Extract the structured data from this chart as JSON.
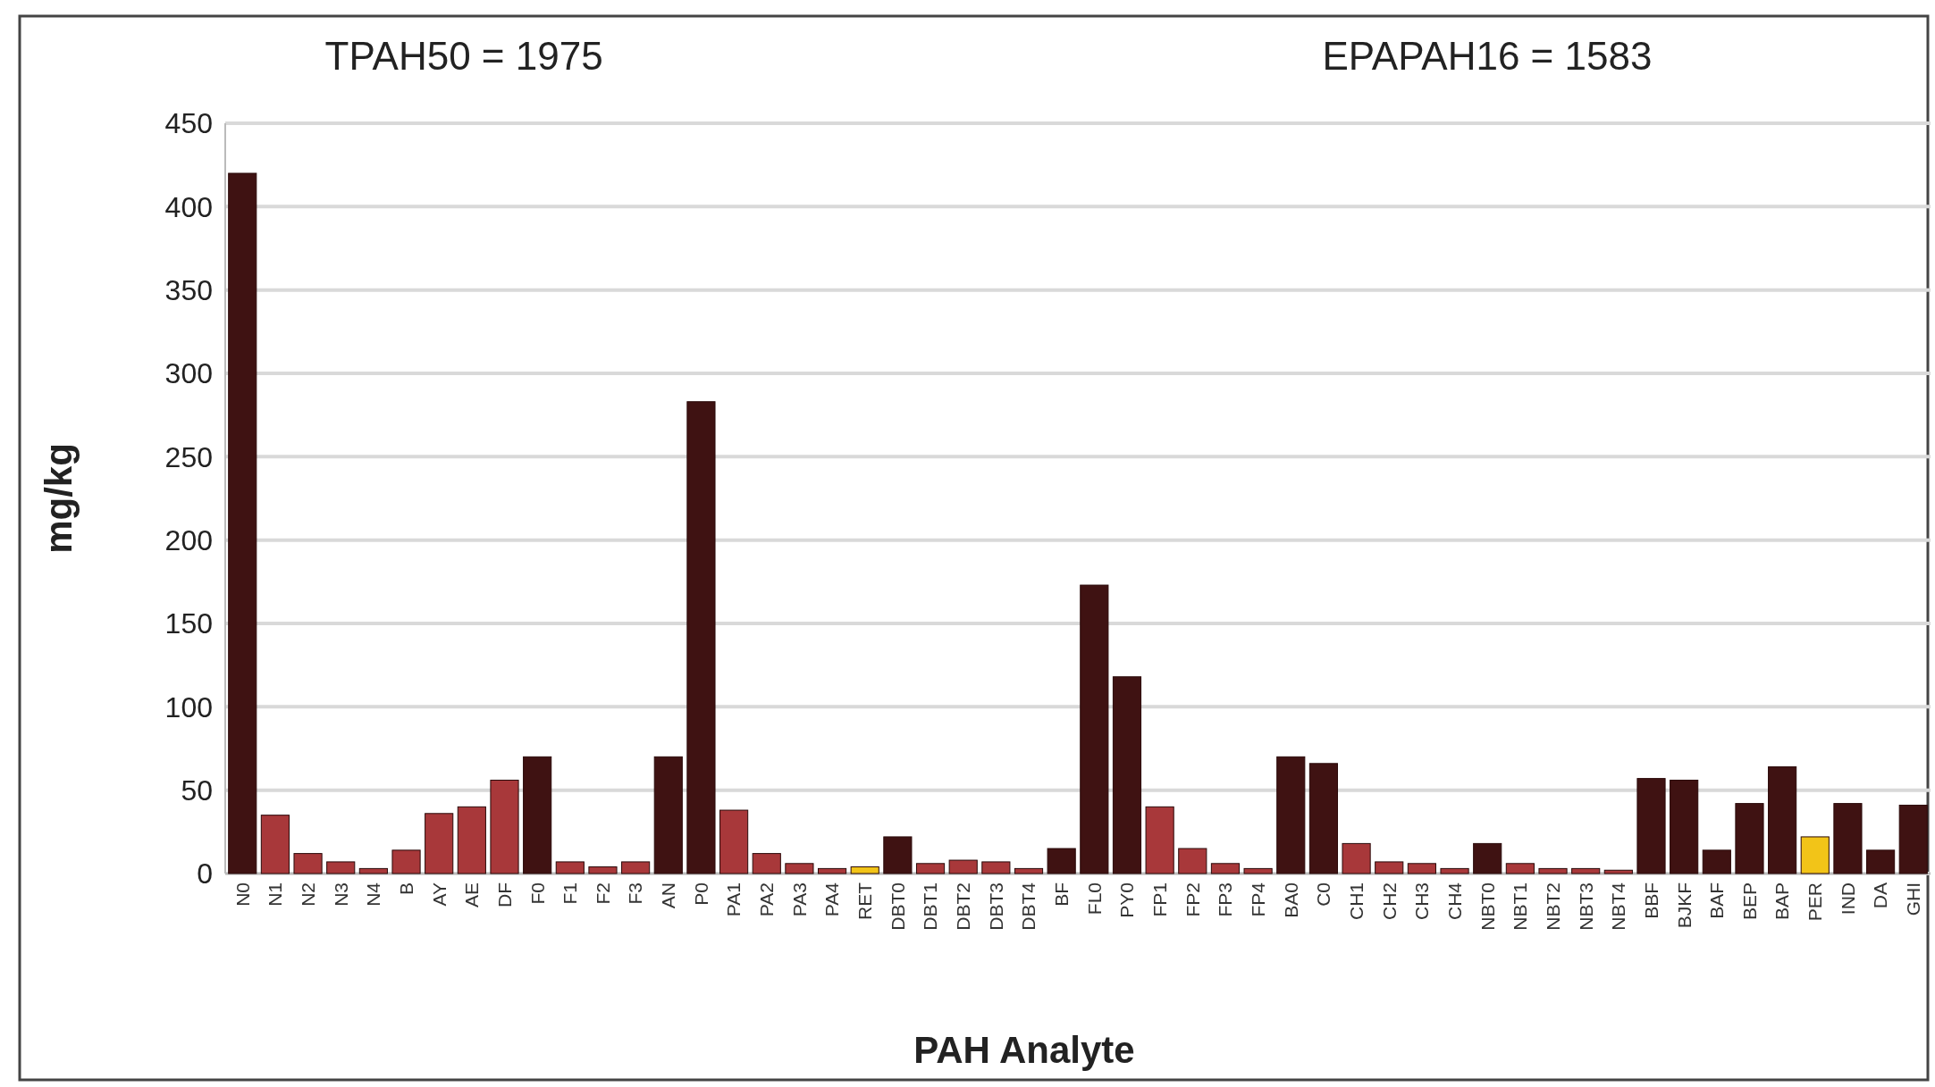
{
  "chart_data": {
    "type": "bar",
    "xlabel": "PAH Analyte",
    "ylabel": "mg/kg",
    "annotations": [
      "TPAH50 = 1975",
      "EPAPAH16 = 1583"
    ],
    "categories": [
      "N0",
      "N1",
      "N2",
      "N3",
      "N4",
      "B",
      "AY",
      "AE",
      "DF",
      "F0",
      "F1",
      "F2",
      "F3",
      "AN",
      "P0",
      "PA1",
      "PA2",
      "PA3",
      "PA4",
      "RET",
      "DBT0",
      "DBT1",
      "DBT2",
      "DBT3",
      "DBT4",
      "BF",
      "FL0",
      "PY0",
      "FP1",
      "FP2",
      "FP3",
      "FP4",
      "BA0",
      "C0",
      "CH1",
      "CH2",
      "CH3",
      "CH4",
      "NBT0",
      "NBT1",
      "NBT2",
      "NBT3",
      "NBT4",
      "BBF",
      "BJKF",
      "BAF",
      "BEP",
      "BAP",
      "PER",
      "IND",
      "DA",
      "GHI"
    ],
    "values": [
      420,
      35,
      12,
      7,
      3,
      14,
      36,
      40,
      56,
      70,
      7,
      4,
      7,
      70,
      283,
      38,
      12,
      6,
      3,
      4,
      22,
      6,
      8,
      7,
      3,
      15,
      173,
      118,
      40,
      15,
      6,
      3,
      70,
      66,
      18,
      7,
      6,
      3,
      18,
      6,
      3,
      3,
      2,
      57,
      56,
      14,
      42,
      64,
      22,
      42,
      14,
      41
    ],
    "colors": [
      "#3f1212",
      "#a8383a",
      "#a8383a",
      "#a8383a",
      "#a8383a",
      "#a8383a",
      "#a8383a",
      "#a8383a",
      "#a8383a",
      "#3f1212",
      "#a8383a",
      "#a8383a",
      "#a8383a",
      "#3f1212",
      "#3f1212",
      "#a8383a",
      "#a8383a",
      "#a8383a",
      "#a8383a",
      "#f2c418",
      "#3f1212",
      "#a8383a",
      "#a8383a",
      "#a8383a",
      "#a8383a",
      "#3f1212",
      "#3f1212",
      "#3f1212",
      "#a8383a",
      "#a8383a",
      "#a8383a",
      "#a8383a",
      "#3f1212",
      "#3f1212",
      "#a8383a",
      "#a8383a",
      "#a8383a",
      "#a8383a",
      "#3f1212",
      "#a8383a",
      "#a8383a",
      "#a8383a",
      "#a8383a",
      "#3f1212",
      "#3f1212",
      "#3f1212",
      "#3f1212",
      "#3f1212",
      "#f2c418",
      "#3f1212",
      "#3f1212",
      "#3f1212"
    ],
    "ylim": [
      0,
      450
    ],
    "yticks": [
      0,
      50,
      100,
      150,
      200,
      250,
      300,
      350,
      400,
      450
    ],
    "grid": "y"
  }
}
